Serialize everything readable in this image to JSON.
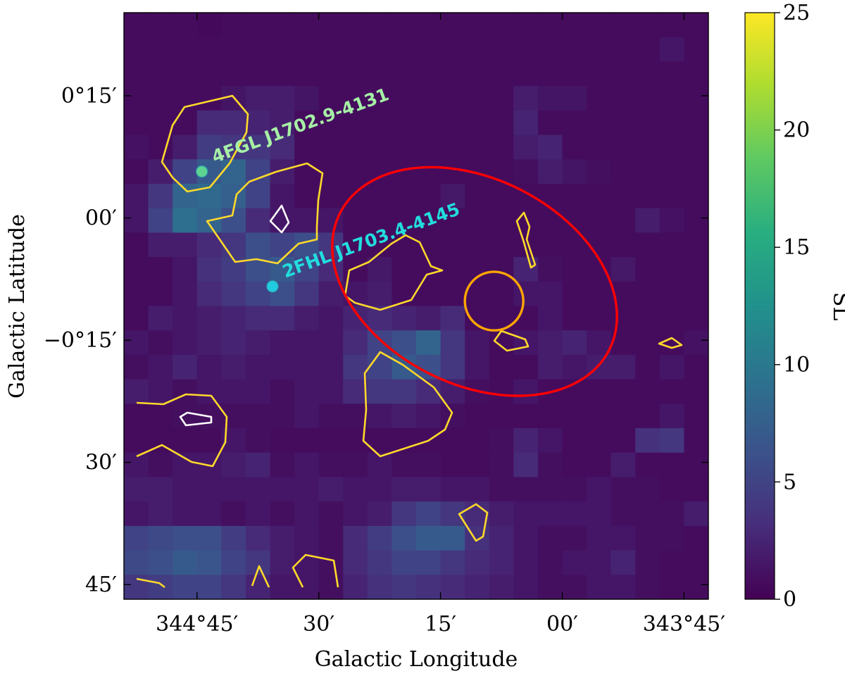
{
  "chart_data": {
    "type": "heatmap",
    "title": "",
    "xlabel": "Galactic Longitude",
    "ylabel": "Galactic Latitude",
    "x_ticks": [
      {
        "value": 344.75,
        "label": "344°45′"
      },
      {
        "value": 344.5,
        "label": "30′"
      },
      {
        "value": 344.25,
        "label": "15′"
      },
      {
        "value": 344.0,
        "label": "00′"
      },
      {
        "value": 343.75,
        "label": "343°45′"
      }
    ],
    "y_ticks": [
      {
        "value": 0.25,
        "label": "0°15′"
      },
      {
        "value": 0.0,
        "label": "00′"
      },
      {
        "value": -0.25,
        "label": "−0°15′"
      },
      {
        "value": -0.5,
        "label": "30′"
      },
      {
        "value": -0.75,
        "label": "45′"
      }
    ],
    "xlim": [
      344.9,
      343.7
    ],
    "ylim": [
      -0.78,
      0.42
    ],
    "colorbar": {
      "label": "SL",
      "min": 0,
      "max": 25,
      "ticks": [
        0,
        5,
        10,
        15,
        20,
        25
      ],
      "colormap": "viridis"
    },
    "grid": {
      "nx": 24,
      "ny": 24,
      "values": [
        [
          0.8,
          0.8,
          0.8,
          0.6,
          0.8,
          0.8,
          0.8,
          0.8,
          0.8,
          0.8,
          0.8,
          0.8,
          0.8,
          0.8,
          0.8,
          0.8,
          0.8,
          0.8,
          0.8,
          0.8,
          0.8,
          0.8,
          0.8,
          0.8
        ],
        [
          0.8,
          0.8,
          0.8,
          0.8,
          0.8,
          0.8,
          0.8,
          0.8,
          0.8,
          0.8,
          0.8,
          0.8,
          0.8,
          0.8,
          0.8,
          0.8,
          0.8,
          0.8,
          0.8,
          0.8,
          0.8,
          0.8,
          1.5,
          0.8
        ],
        [
          0.8,
          0.8,
          0.8,
          0.8,
          0.8,
          0.8,
          0.8,
          0.8,
          0.8,
          0.8,
          0.8,
          0.8,
          0.8,
          0.8,
          0.8,
          0.8,
          0.8,
          0.8,
          0.8,
          0.8,
          0.8,
          0.8,
          0.8,
          0.8
        ],
        [
          0.8,
          0.8,
          0.8,
          0.8,
          1.4,
          2.0,
          2.0,
          1.4,
          0.8,
          0.8,
          0.8,
          0.8,
          0.8,
          0.8,
          0.8,
          0.8,
          2.0,
          1.4,
          1.4,
          0.8,
          0.8,
          0.8,
          0.8,
          0.8
        ],
        [
          0.8,
          0.8,
          0.8,
          3.0,
          3.0,
          2.5,
          2.0,
          0.8,
          0.8,
          0.8,
          0.8,
          0.8,
          0.8,
          0.8,
          0.8,
          0.8,
          2.5,
          0.8,
          0.8,
          0.8,
          0.8,
          0.8,
          0.8,
          0.8
        ],
        [
          1.2,
          0.8,
          2.0,
          4.5,
          4.0,
          4.0,
          3.0,
          0.8,
          0.8,
          0.8,
          0.8,
          0.8,
          0.8,
          0.8,
          0.8,
          0.8,
          2.0,
          2.5,
          0.8,
          0.8,
          0.8,
          0.8,
          0.8,
          0.8
        ],
        [
          0.8,
          2.0,
          5.0,
          7.0,
          8.0,
          5.0,
          2.0,
          0.8,
          0.8,
          0.8,
          0.8,
          0.8,
          0.8,
          0.8,
          0.8,
          0.8,
          1.0,
          2.0,
          1.4,
          1.0,
          0.8,
          0.8,
          0.8,
          0.8
        ],
        [
          1.5,
          4.0,
          8.0,
          8.5,
          7.5,
          5.0,
          1.5,
          0.8,
          0.8,
          0.8,
          0.8,
          0.8,
          0.8,
          1.6,
          0.8,
          0.8,
          0.8,
          0.8,
          0.8,
          0.8,
          0.8,
          0.8,
          0.8,
          0.8
        ],
        [
          1.5,
          5.0,
          9.0,
          8.0,
          6.0,
          3.0,
          1.5,
          1.5,
          1.5,
          0.8,
          0.8,
          0.8,
          0.8,
          0.8,
          0.8,
          0.8,
          0.8,
          0.8,
          0.8,
          0.8,
          0.8,
          2.0,
          1.2,
          0.8
        ],
        [
          0.8,
          2.0,
          2.0,
          3.0,
          4.0,
          6.0,
          5.0,
          6.0,
          4.0,
          0.8,
          0.8,
          0.8,
          0.8,
          0.8,
          0.8,
          0.8,
          0.8,
          0.8,
          0.8,
          0.8,
          0.8,
          0.8,
          0.8,
          0.8
        ],
        [
          0.8,
          0.8,
          1.5,
          3.5,
          4.5,
          6.0,
          7.0,
          5.0,
          3.0,
          0.8,
          1.6,
          0.8,
          0.8,
          0.8,
          0.8,
          0.8,
          2.5,
          1.0,
          0.8,
          0.8,
          1.6,
          0.8,
          0.8,
          0.8
        ],
        [
          0.8,
          0.8,
          1.5,
          3.0,
          4.0,
          5.0,
          6.0,
          4.0,
          2.0,
          1.5,
          2.0,
          0.8,
          0.8,
          0.8,
          0.8,
          0.8,
          1.5,
          1.5,
          0.8,
          0.8,
          0.8,
          0.8,
          0.8,
          0.8
        ],
        [
          0.8,
          2.0,
          1.5,
          2.0,
          2.5,
          3.0,
          3.0,
          2.0,
          1.5,
          2.5,
          3.0,
          2.5,
          2.0,
          3.0,
          0.8,
          0.8,
          0.8,
          1.5,
          0.8,
          0.8,
          0.8,
          0.8,
          0.8,
          0.8
        ],
        [
          1.5,
          1.0,
          1.5,
          2.0,
          2.5,
          2.0,
          1.5,
          1.5,
          1.5,
          3.0,
          5.0,
          6.0,
          8.0,
          4.0,
          1.5,
          0.8,
          1.5,
          2.0,
          2.5,
          1.5,
          0.8,
          0.8,
          0.8,
          1.2
        ],
        [
          1.0,
          1.5,
          2.5,
          1.5,
          2.0,
          1.5,
          1.5,
          1.5,
          1.5,
          4.0,
          5.0,
          7.0,
          6.0,
          4.0,
          1.5,
          0.8,
          0.8,
          2.0,
          1.5,
          2.0,
          2.0,
          0.8,
          1.5,
          0.8
        ],
        [
          2.0,
          1.5,
          1.0,
          1.5,
          1.5,
          1.5,
          1.0,
          1.5,
          1.5,
          3.0,
          4.0,
          4.0,
          3.0,
          2.0,
          1.0,
          0.8,
          1.5,
          0.8,
          0.8,
          0.8,
          0.8,
          0.8,
          0.8,
          0.8
        ],
        [
          0.8,
          0.8,
          1.0,
          1.0,
          1.0,
          1.0,
          1.0,
          1.5,
          1.0,
          1.0,
          1.5,
          2.0,
          1.5,
          1.0,
          0.8,
          0.8,
          0.8,
          0.8,
          0.8,
          0.8,
          0.8,
          0.8,
          1.5,
          0.8
        ],
        [
          0.8,
          0.8,
          0.8,
          0.8,
          1.5,
          1.0,
          0.8,
          0.8,
          0.8,
          0.8,
          0.8,
          0.8,
          0.8,
          0.8,
          0.8,
          1.0,
          2.5,
          1.5,
          0.8,
          0.8,
          0.8,
          3.5,
          4.0,
          0.8
        ],
        [
          1.5,
          1.0,
          1.5,
          1.5,
          2.0,
          2.5,
          1.0,
          1.5,
          1.0,
          1.0,
          1.5,
          1.0,
          1.0,
          0.8,
          0.8,
          1.0,
          3.0,
          1.0,
          0.8,
          0.8,
          2.0,
          0.8,
          0.8,
          0.8
        ],
        [
          2.0,
          2.0,
          1.5,
          1.5,
          1.5,
          1.5,
          1.5,
          1.5,
          2.0,
          1.5,
          1.5,
          2.0,
          2.0,
          1.5,
          1.5,
          1.0,
          1.0,
          1.0,
          1.0,
          1.5,
          1.0,
          1.0,
          0.8,
          0.8
        ],
        [
          1.5,
          2.0,
          1.5,
          1.5,
          1.0,
          1.5,
          1.0,
          1.5,
          1.0,
          1.5,
          2.0,
          4.0,
          5.0,
          4.0,
          3.0,
          2.0,
          1.5,
          1.5,
          1.5,
          1.5,
          1.0,
          1.0,
          1.0,
          2.0
        ],
        [
          5.0,
          5.5,
          6.0,
          6.0,
          4.5,
          3.0,
          2.0,
          1.5,
          1.0,
          3.0,
          4.5,
          6.0,
          7.0,
          7.0,
          3.5,
          2.5,
          1.5,
          1.0,
          1.0,
          1.5,
          1.5,
          1.0,
          1.0,
          0.8
        ],
        [
          5.5,
          6.0,
          7.0,
          6.5,
          5.0,
          4.0,
          2.0,
          1.5,
          1.0,
          3.0,
          4.0,
          5.0,
          5.0,
          4.0,
          3.0,
          2.5,
          1.5,
          1.0,
          1.5,
          1.5,
          2.5,
          1.0,
          0.8,
          0.8
        ],
        [
          4.0,
          4.5,
          5.0,
          5.0,
          4.0,
          2.5,
          1.5,
          1.5,
          1.0,
          2.5,
          3.5,
          4.0,
          3.5,
          3.0,
          2.5,
          2.0,
          1.5,
          1.0,
          1.0,
          1.5,
          1.5,
          1.0,
          0.8,
          0.8
        ]
      ]
    },
    "ellipses": [
      {
        "name": "red-ellipse",
        "color": "#ff0000",
        "center_l": 344.18,
        "center_b": -0.13,
        "semi_major_deg": 0.31,
        "semi_minor_deg": 0.21,
        "angle_deg": -27
      },
      {
        "name": "orange-circle",
        "color": "#ffa500",
        "center_l": 344.14,
        "center_b": -0.17,
        "radius_deg": 0.06
      }
    ],
    "sources": [
      {
        "label": "4FGL J1702.9-4131",
        "l": 344.74,
        "b": 0.095,
        "color": "#5fd390",
        "label_color": "#a6f0a6"
      },
      {
        "label": "2FHL J1703.4-4145",
        "l": 344.595,
        "b": -0.14,
        "color": "#22cce0",
        "label_color": "#22dddd"
      }
    ],
    "contours": {
      "yellow_color": "#ffd92a",
      "white_color": "#ffffff"
    }
  }
}
